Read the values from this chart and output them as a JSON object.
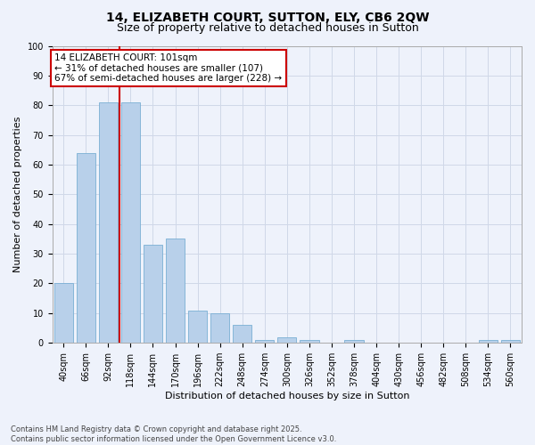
{
  "title": "14, ELIZABETH COURT, SUTTON, ELY, CB6 2QW",
  "subtitle": "Size of property relative to detached houses in Sutton",
  "xlabel": "Distribution of detached houses by size in Sutton",
  "ylabel": "Number of detached properties",
  "categories": [
    "40sqm",
    "66sqm",
    "92sqm",
    "118sqm",
    "144sqm",
    "170sqm",
    "196sqm",
    "222sqm",
    "248sqm",
    "274sqm",
    "300sqm",
    "326sqm",
    "352sqm",
    "378sqm",
    "404sqm",
    "430sqm",
    "456sqm",
    "482sqm",
    "508sqm",
    "534sqm",
    "560sqm"
  ],
  "values": [
    20,
    64,
    81,
    81,
    33,
    35,
    11,
    10,
    6,
    1,
    2,
    1,
    0,
    1,
    0,
    0,
    0,
    0,
    0,
    1,
    1
  ],
  "bar_color": "#b8d0ea",
  "bar_edge_color": "#7aafd4",
  "highlight_index": 2,
  "highlight_line_color": "#cc0000",
  "ylim": [
    0,
    100
  ],
  "yticks": [
    0,
    10,
    20,
    30,
    40,
    50,
    60,
    70,
    80,
    90,
    100
  ],
  "annotation_text": "14 ELIZABETH COURT: 101sqm\n← 31% of detached houses are smaller (107)\n67% of semi-detached houses are larger (228) →",
  "annotation_box_color": "#cc0000",
  "footnote": "Contains HM Land Registry data © Crown copyright and database right 2025.\nContains public sector information licensed under the Open Government Licence v3.0.",
  "bg_color": "#eef2fb",
  "grid_color": "#d0d8e8",
  "title_fontsize": 10,
  "subtitle_fontsize": 9,
  "axis_label_fontsize": 8,
  "tick_fontsize": 7,
  "annotation_fontsize": 7.5,
  "footnote_fontsize": 6
}
